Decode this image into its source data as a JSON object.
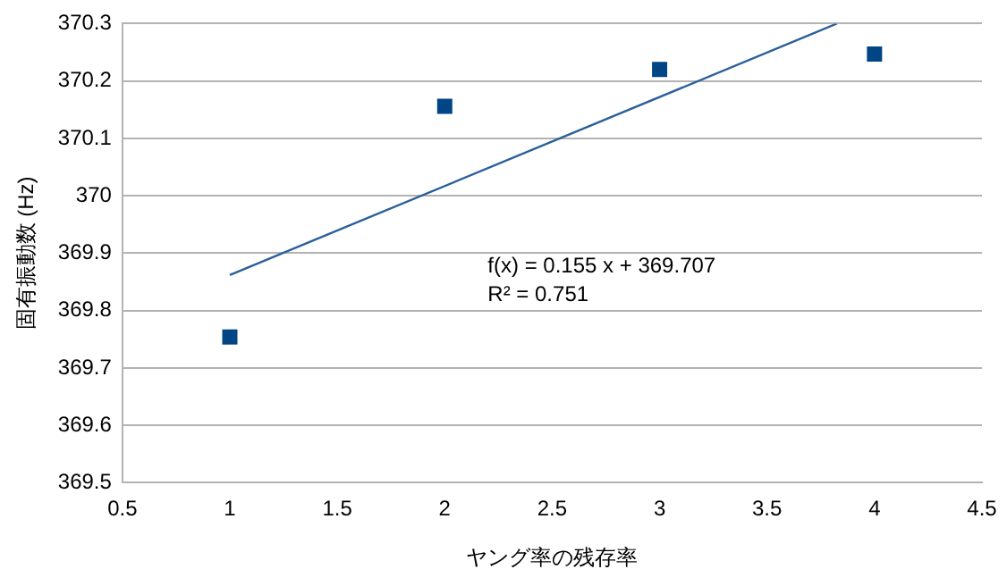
{
  "chart_data": {
    "type": "scatter",
    "xlabel": "ヤング率の残存率",
    "ylabel": "固有振動数 (Hz)",
    "series": [
      {
        "color": "#004586",
        "x": [
          1,
          2,
          3,
          4
        ],
        "values": [
          369.754,
          370.156,
          370.22,
          370.247
        ],
        "marker": "square"
      },
      {
        "type": "line",
        "color": "#2a6099",
        "x": [
          1,
          3.825
        ],
        "values": [
          369.862,
          370.3
        ],
        "marker": "none"
      }
    ],
    "annotations": [
      "f(x) = 0.155 x + 369.707",
      "R² = 0.751"
    ],
    "xlim": [
      0.5,
      4.5
    ],
    "xticks": [
      0.5,
      1,
      1.5,
      2,
      2.5,
      3,
      3.5,
      4,
      4.5
    ],
    "ylim": [
      369.5,
      370.3
    ],
    "yticks": [
      369.5,
      369.6,
      369.7,
      369.8,
      369.9,
      370,
      370.1,
      370.2,
      370.3
    ],
    "grid": "y",
    "legend": false
  }
}
